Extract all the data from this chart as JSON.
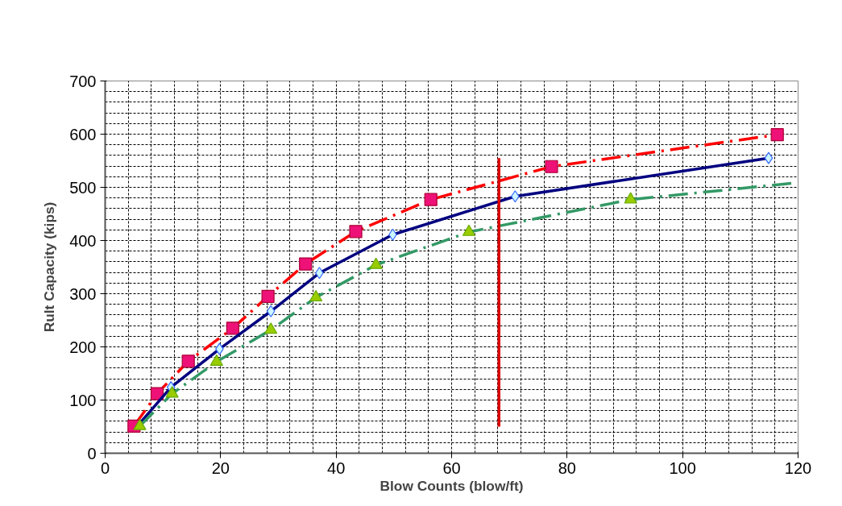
{
  "chart_data": {
    "type": "line",
    "xlabel": "Blow Counts (blow/ft)",
    "ylabel": "Rult Capacity (kips)",
    "xlim": [
      0,
      120
    ],
    "ylim": [
      0,
      700
    ],
    "xticks": [
      0,
      20,
      40,
      60,
      80,
      100,
      120
    ],
    "yticks": [
      0,
      100,
      200,
      300,
      400,
      500,
      600,
      700
    ],
    "grid": true,
    "series": [
      {
        "color": "#ff0000",
        "line_style": "dashdot",
        "x": [
          5,
          9,
          14.4,
          22.1,
          28.2,
          34.7,
          43.4,
          56.4,
          77.3,
          116.4
        ],
        "values": [
          51,
          112,
          173,
          235,
          295,
          356,
          417,
          477,
          539,
          599
        ]
      },
      {
        "type": "scatter",
        "marker": "square",
        "color": "#ee1177",
        "x": [
          5,
          9,
          14.4,
          22.1,
          28.2,
          34.7,
          43.4,
          56.4,
          77.3,
          116.4
        ],
        "values": [
          51,
          112,
          173,
          235,
          295,
          356,
          417,
          477,
          539,
          599
        ]
      },
      {
        "color": "#000080",
        "line_style": "solid",
        "x": [
          5.5,
          11.4,
          19.8,
          28.7,
          37.1,
          49.8,
          71.0,
          114.9
        ],
        "values": [
          50,
          124,
          196,
          267,
          339,
          411,
          483,
          555
        ]
      },
      {
        "type": "scatter",
        "marker": "diamond",
        "color": "#3366ff",
        "x": [
          11.4,
          19.8,
          28.7,
          37.1,
          49.8,
          71.0,
          114.9
        ],
        "values": [
          124,
          196,
          267,
          339,
          411,
          483,
          555
        ]
      },
      {
        "color": "#339966",
        "line_style": "dashdot",
        "x": [
          6.0,
          11.6,
          19.3,
          28.7,
          36.5,
          46.9,
          63.0,
          91.0,
          119.2
        ],
        "values": [
          51,
          112,
          172,
          232,
          293,
          354,
          416,
          477,
          508
        ]
      },
      {
        "type": "scatter",
        "marker": "triangle",
        "color": "#99cc00",
        "x": [
          6.0,
          11.6,
          19.3,
          28.7,
          36.5,
          46.9,
          63.0,
          91.0
        ],
        "values": [
          51,
          112,
          172,
          232,
          293,
          354,
          416,
          477
        ]
      },
      {
        "color": "#dd0000",
        "line_style": "solid",
        "x": [
          68.2,
          68.2
        ],
        "values": [
          50,
          555
        ]
      }
    ]
  }
}
